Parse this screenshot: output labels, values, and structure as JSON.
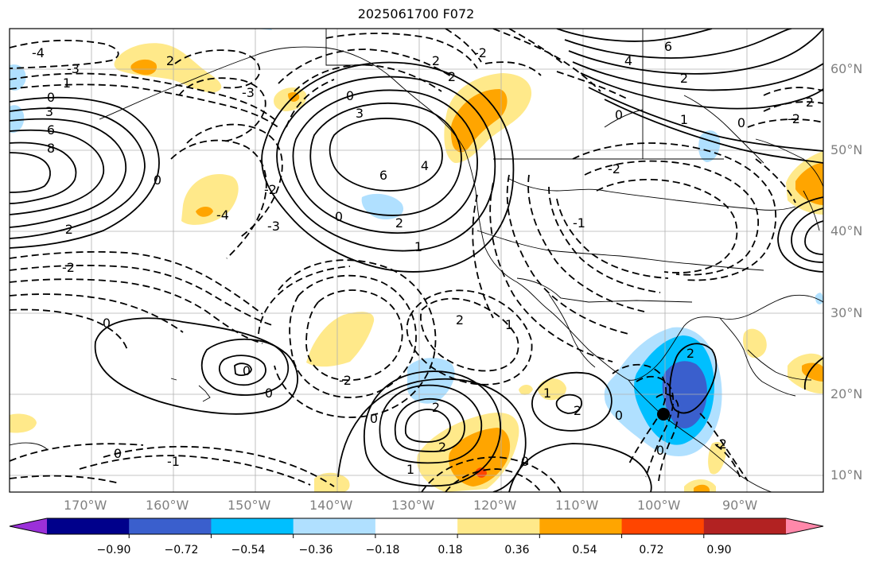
{
  "title": "2025061700 F072",
  "lat_labels": [
    "60°N",
    "50°N",
    "40°N",
    "30°N",
    "20°N",
    "10°N"
  ],
  "lon_labels": [
    "170°W",
    "160°W",
    "150°W",
    "140°W",
    "130°W",
    "120°W",
    "110°W",
    "100°W",
    "90°W"
  ],
  "colorbar": {
    "colors": [
      "#9b30d9",
      "#00008b",
      "#3a5fcd",
      "#00bfff",
      "#b0e0ff",
      "#ffffff",
      "#ffe98a",
      "#ffa500",
      "#ff4500",
      "#b22222",
      "#ff88aa"
    ],
    "tick_labels": [
      "−0.90",
      "−0.72",
      "−0.54",
      "−0.36",
      "−0.18",
      "0.18",
      "0.36",
      "0.54",
      "0.72",
      "0.90"
    ]
  },
  "contour_labels": [
    {
      "text": "-4"
    },
    {
      "text": "-3"
    },
    {
      "text": "1"
    },
    {
      "text": "0"
    },
    {
      "text": "3"
    },
    {
      "text": "6"
    },
    {
      "text": "8"
    },
    {
      "text": "2"
    },
    {
      "text": "-3"
    },
    {
      "text": "0"
    },
    {
      "text": "-4"
    },
    {
      "text": "-2"
    },
    {
      "text": "-2"
    },
    {
      "text": "0"
    },
    {
      "text": "3"
    },
    {
      "text": "6"
    },
    {
      "text": "4"
    },
    {
      "text": "2"
    },
    {
      "text": "1"
    },
    {
      "text": "-2"
    },
    {
      "text": "-3"
    },
    {
      "text": "0"
    },
    {
      "text": "2"
    },
    {
      "text": "-2"
    },
    {
      "text": "2"
    },
    {
      "text": "4"
    },
    {
      "text": "6"
    },
    {
      "text": "2"
    },
    {
      "text": "0"
    },
    {
      "text": "1"
    },
    {
      "text": "0"
    },
    {
      "text": "2"
    },
    {
      "text": "-2"
    },
    {
      "text": "-2"
    },
    {
      "text": "0"
    },
    {
      "text": "2"
    },
    {
      "text": "1"
    },
    {
      "text": "0"
    },
    {
      "text": "-2"
    },
    {
      "text": "0"
    },
    {
      "text": "2"
    },
    {
      "text": "2"
    },
    {
      "text": "-1"
    },
    {
      "text": "0"
    },
    {
      "text": "1"
    },
    {
      "text": "2"
    },
    {
      "text": "0"
    },
    {
      "text": "-1"
    },
    {
      "text": "0"
    },
    {
      "text": "2"
    },
    {
      "text": "-2"
    },
    {
      "text": "0"
    },
    {
      "text": "1"
    },
    {
      "text": "0"
    }
  ]
}
